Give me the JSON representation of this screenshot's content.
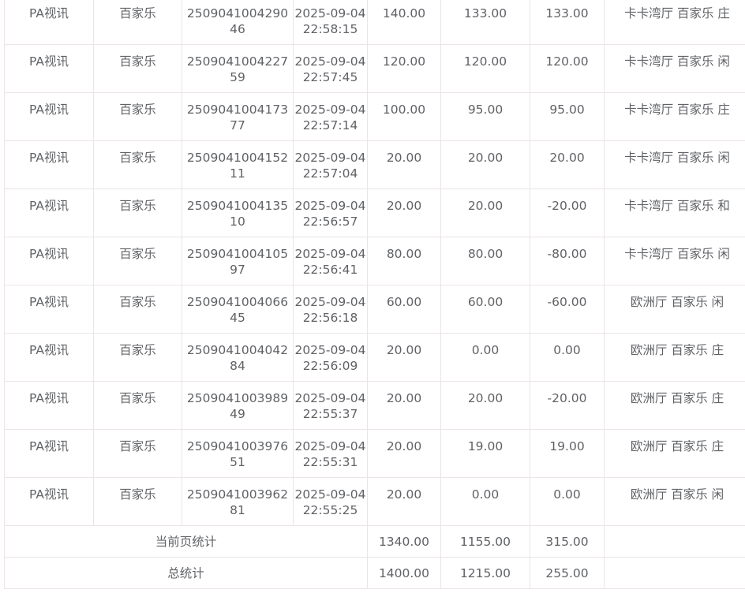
{
  "rows": [
    {
      "platform": "PA视讯",
      "game": "百家乐",
      "order": "250904100429046",
      "date": "2025-09-04",
      "time": "22:58:15",
      "bet": "140.00",
      "valid": "133.00",
      "win": "133.00",
      "detail": "卡卡湾厅 百家乐 庄"
    },
    {
      "platform": "PA视讯",
      "game": "百家乐",
      "order": "250904100422759",
      "date": "2025-09-04",
      "time": "22:57:45",
      "bet": "120.00",
      "valid": "120.00",
      "win": "120.00",
      "detail": "卡卡湾厅 百家乐 闲"
    },
    {
      "platform": "PA视讯",
      "game": "百家乐",
      "order": "250904100417377",
      "date": "2025-09-04",
      "time": "22:57:14",
      "bet": "100.00",
      "valid": "95.00",
      "win": "95.00",
      "detail": "卡卡湾厅 百家乐 庄"
    },
    {
      "platform": "PA视讯",
      "game": "百家乐",
      "order": "250904100415211",
      "date": "2025-09-04",
      "time": "22:57:04",
      "bet": "20.00",
      "valid": "20.00",
      "win": "20.00",
      "detail": "卡卡湾厅 百家乐 闲"
    },
    {
      "platform": "PA视讯",
      "game": "百家乐",
      "order": "250904100413510",
      "date": "2025-09-04",
      "time": "22:56:57",
      "bet": "20.00",
      "valid": "20.00",
      "win": "-20.00",
      "detail": "卡卡湾厅 百家乐 和"
    },
    {
      "platform": "PA视讯",
      "game": "百家乐",
      "order": "250904100410597",
      "date": "2025-09-04",
      "time": "22:56:41",
      "bet": "80.00",
      "valid": "80.00",
      "win": "-80.00",
      "detail": "卡卡湾厅 百家乐 闲"
    },
    {
      "platform": "PA视讯",
      "game": "百家乐",
      "order": "250904100406645",
      "date": "2025-09-04",
      "time": "22:56:18",
      "bet": "60.00",
      "valid": "60.00",
      "win": "-60.00",
      "detail": "欧洲厅 百家乐 闲"
    },
    {
      "platform": "PA视讯",
      "game": "百家乐",
      "order": "250904100404284",
      "date": "2025-09-04",
      "time": "22:56:09",
      "bet": "20.00",
      "valid": "0.00",
      "win": "0.00",
      "detail": "欧洲厅 百家乐 庄"
    },
    {
      "platform": "PA视讯",
      "game": "百家乐",
      "order": "250904100398949",
      "date": "2025-09-04",
      "time": "22:55:37",
      "bet": "20.00",
      "valid": "20.00",
      "win": "-20.00",
      "detail": "欧洲厅 百家乐 庄"
    },
    {
      "platform": "PA视讯",
      "game": "百家乐",
      "order": "250904100397651",
      "date": "2025-09-04",
      "time": "22:55:31",
      "bet": "20.00",
      "valid": "19.00",
      "win": "19.00",
      "detail": "欧洲厅 百家乐 庄"
    },
    {
      "platform": "PA视讯",
      "game": "百家乐",
      "order": "250904100396281",
      "date": "2025-09-04",
      "time": "22:55:25",
      "bet": "20.00",
      "valid": "0.00",
      "win": "0.00",
      "detail": "欧洲厅 百家乐 闲"
    }
  ],
  "page_summary": {
    "label": "当前页统计",
    "bet": "1340.00",
    "valid": "1155.00",
    "win": "315.00"
  },
  "total_summary": {
    "label": "总统计",
    "bet": "1400.00",
    "valid": "1215.00",
    "win": "255.00"
  }
}
